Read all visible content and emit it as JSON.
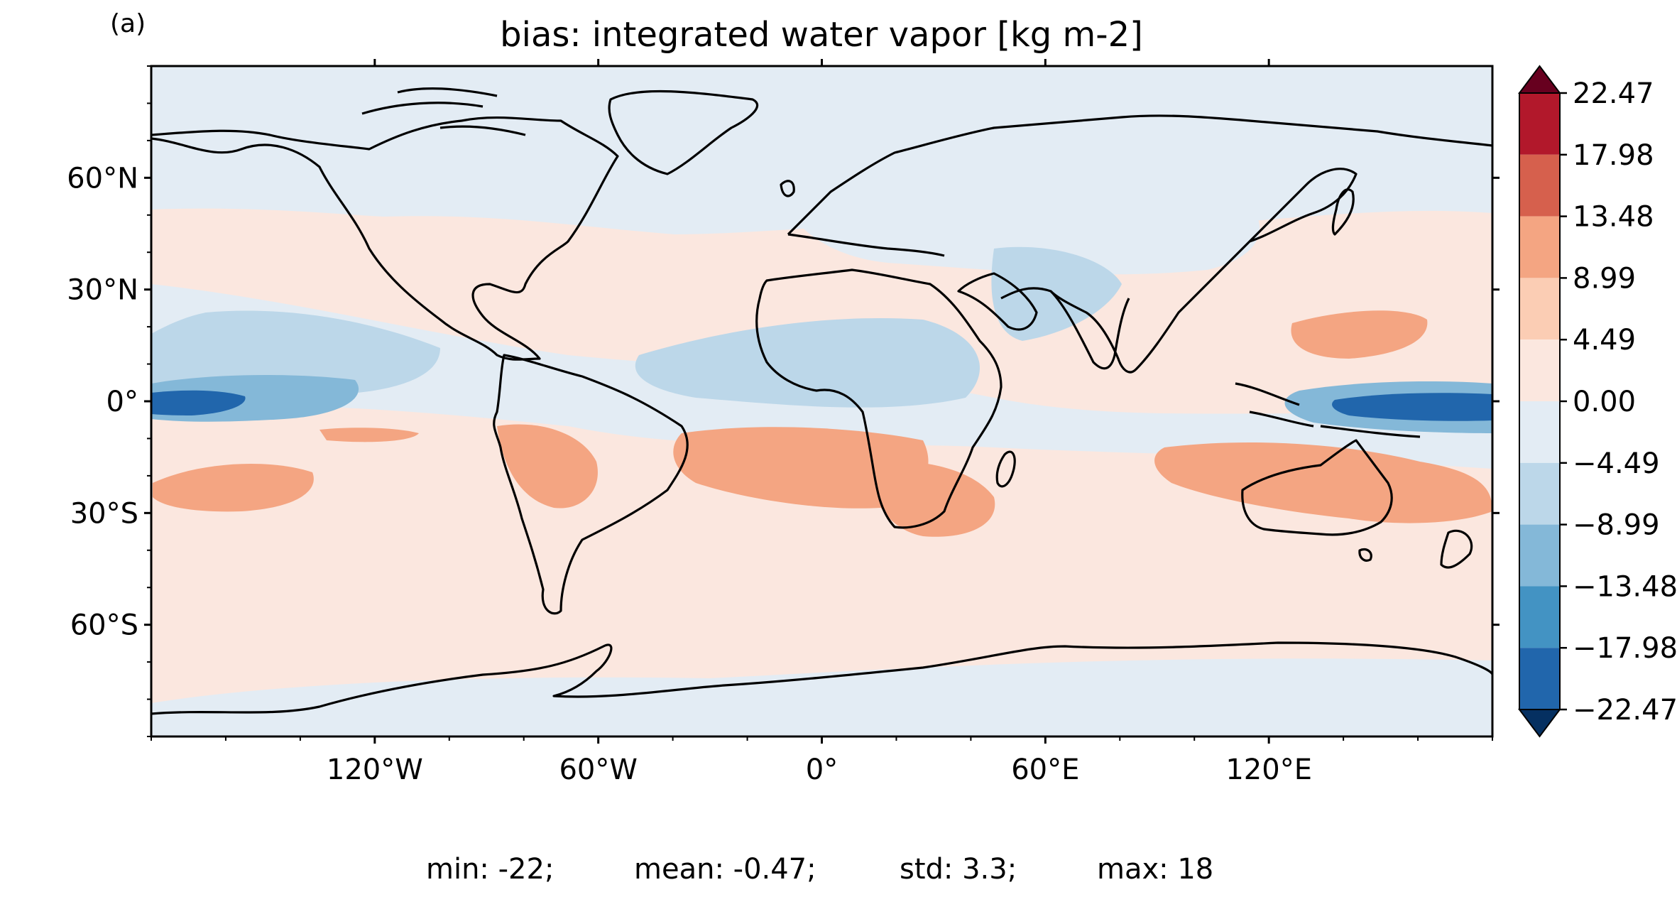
{
  "panel_label": "(a)",
  "title": "bias: integrated water vapor [kg m-2]",
  "x_ticks": [
    {
      "lon": -120,
      "label": "120°W"
    },
    {
      "lon": -60,
      "label": "60°W"
    },
    {
      "lon": 0,
      "label": "0°"
    },
    {
      "lon": 60,
      "label": "60°E"
    },
    {
      "lon": 120,
      "label": "120°E"
    }
  ],
  "y_ticks": [
    {
      "lat": 60,
      "label": "60°N"
    },
    {
      "lat": 30,
      "label": "30°N"
    },
    {
      "lat": 0,
      "label": "0°"
    },
    {
      "lat": -30,
      "label": "30°S"
    },
    {
      "lat": -60,
      "label": "60°S"
    }
  ],
  "colorbar": {
    "extend": "both",
    "levels": [
      {
        "value": 22.47,
        "label": "22.47"
      },
      {
        "value": 17.98,
        "label": "17.98"
      },
      {
        "value": 13.48,
        "label": "13.48"
      },
      {
        "value": 8.99,
        "label": "8.99"
      },
      {
        "value": 4.49,
        "label": "4.49"
      },
      {
        "value": 0.0,
        "label": "0.00"
      },
      {
        "value": -4.49,
        "label": "−4.49"
      },
      {
        "value": -8.99,
        "label": "−8.99"
      },
      {
        "value": -13.48,
        "label": "−13.48"
      },
      {
        "value": -17.98,
        "label": "−17.98"
      },
      {
        "value": -22.47,
        "label": "−22.47"
      }
    ],
    "colors_high_to_low": [
      "#67001f",
      "#b2182b",
      "#d6604d",
      "#f4a582",
      "#fbcdb4",
      "#fbe7df",
      "#e3ecf4",
      "#bcd7e9",
      "#84b8d8",
      "#4393c3",
      "#2166ac",
      "#053061"
    ]
  },
  "stats": [
    {
      "label": "min: -22;"
    },
    {
      "label": "mean: -0.47;"
    },
    {
      "label": "std: 3.3;"
    },
    {
      "label": "max: 18"
    }
  ],
  "colors": {
    "ocean_background": "#fbe7df",
    "coastline": "#000000"
  }
}
